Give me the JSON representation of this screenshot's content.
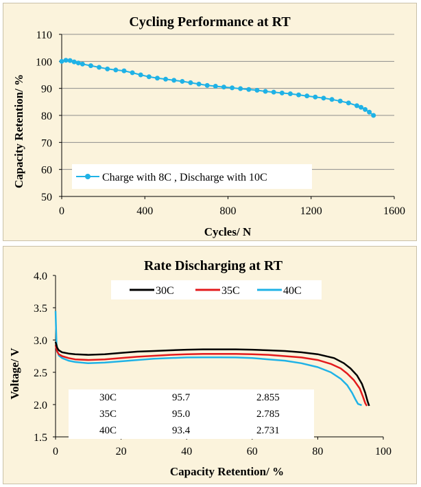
{
  "chart_data": [
    {
      "type": "scatter",
      "title": "Cycling Performance at RT",
      "xlabel": "Cycles/ N",
      "ylabel": "Capacity Retention/ %",
      "xlim": [
        0,
        1600
      ],
      "ylim": [
        50,
        110
      ],
      "xticks": [
        0,
        400,
        800,
        1200,
        1600
      ],
      "yticks": [
        50,
        60,
        70,
        80,
        90,
        100,
        110
      ],
      "grid": "horizontal",
      "legend_position": "bottom-left",
      "series": [
        {
          "name": "Charge with 8C , Discharge with 10C",
          "color": "#1fb2e6",
          "x": [
            0,
            20,
            40,
            60,
            80,
            100,
            140,
            180,
            220,
            260,
            300,
            340,
            380,
            420,
            460,
            500,
            540,
            580,
            620,
            660,
            700,
            740,
            780,
            820,
            860,
            900,
            940,
            980,
            1020,
            1060,
            1100,
            1140,
            1180,
            1220,
            1260,
            1300,
            1340,
            1380,
            1420,
            1440,
            1460,
            1480,
            1500
          ],
          "y": [
            100,
            100.4,
            100.3,
            99.8,
            99.4,
            99.0,
            98.4,
            97.8,
            97.2,
            96.8,
            96.5,
            95.8,
            95.0,
            94.3,
            93.8,
            93.4,
            93.0,
            92.6,
            92.1,
            91.6,
            91.1,
            90.8,
            90.5,
            90.2,
            89.9,
            89.6,
            89.3,
            88.9,
            88.6,
            88.3,
            88.0,
            87.6,
            87.2,
            86.8,
            86.4,
            85.9,
            85.3,
            84.6,
            83.6,
            83.0,
            82.2,
            81.2,
            80.0
          ]
        }
      ]
    },
    {
      "type": "line",
      "title": "Rate Discharging at RT",
      "xlabel": "Capacity Retention/ %",
      "ylabel": "Voltage/ V",
      "xlim": [
        0,
        100
      ],
      "ylim": [
        1.5,
        4.0
      ],
      "xticks": [
        0,
        20,
        40,
        60,
        80,
        100
      ],
      "yticks": [
        1.5,
        2.0,
        2.5,
        3.0,
        3.5,
        4.0
      ],
      "yticklabels": [
        "1.5",
        "2.0",
        "2.5",
        "3.0",
        "3.5",
        "4.0"
      ],
      "grid": "none",
      "legend_position": "top",
      "series": [
        {
          "name": "30C",
          "color": "#000000",
          "x": [
            0,
            0.5,
            1,
            2,
            4,
            6,
            10,
            15,
            20,
            25,
            30,
            35,
            40,
            45,
            50,
            55,
            60,
            65,
            70,
            75,
            80,
            85,
            88,
            90,
            92,
            93.5,
            94.5,
            95.2,
            95.7
          ],
          "y": [
            2.97,
            2.88,
            2.84,
            2.81,
            2.79,
            2.78,
            2.77,
            2.78,
            2.8,
            2.82,
            2.83,
            2.84,
            2.85,
            2.855,
            2.855,
            2.855,
            2.85,
            2.84,
            2.83,
            2.81,
            2.78,
            2.72,
            2.64,
            2.56,
            2.45,
            2.32,
            2.18,
            2.05,
            1.98
          ]
        },
        {
          "name": "35C",
          "color": "#e31a1c",
          "x": [
            0,
            0.5,
            1,
            2,
            4,
            6,
            10,
            15,
            20,
            25,
            30,
            35,
            40,
            45,
            50,
            55,
            60,
            65,
            70,
            75,
            80,
            84,
            87,
            89,
            91,
            92.8,
            93.8,
            94.5,
            95.0
          ],
          "y": [
            2.92,
            2.82,
            2.78,
            2.75,
            2.72,
            2.7,
            2.69,
            2.7,
            2.72,
            2.74,
            2.755,
            2.77,
            2.78,
            2.785,
            2.785,
            2.785,
            2.78,
            2.77,
            2.75,
            2.73,
            2.69,
            2.63,
            2.56,
            2.48,
            2.38,
            2.25,
            2.12,
            2.02,
            1.98
          ]
        },
        {
          "name": "40C",
          "color": "#1fb2e6",
          "x": [
            0,
            0.3,
            0.6,
            1,
            2,
            4,
            6,
            10,
            15,
            20,
            25,
            30,
            35,
            40,
            45,
            50,
            55,
            60,
            65,
            70,
            75,
            80,
            84,
            87,
            89,
            90.5,
            91.5,
            92.3,
            93.4
          ],
          "y": [
            3.45,
            2.95,
            2.82,
            2.76,
            2.72,
            2.68,
            2.66,
            2.64,
            2.65,
            2.67,
            2.69,
            2.71,
            2.72,
            2.73,
            2.731,
            2.731,
            2.73,
            2.72,
            2.7,
            2.68,
            2.64,
            2.58,
            2.5,
            2.4,
            2.3,
            2.18,
            2.08,
            2.01,
            1.99
          ]
        }
      ],
      "table": {
        "rows": [
          [
            "30C",
            "95.7",
            "2.855"
          ],
          [
            "35C",
            "95.0",
            "2.785"
          ],
          [
            "40C",
            "93.4",
            "2.731"
          ]
        ]
      }
    }
  ]
}
